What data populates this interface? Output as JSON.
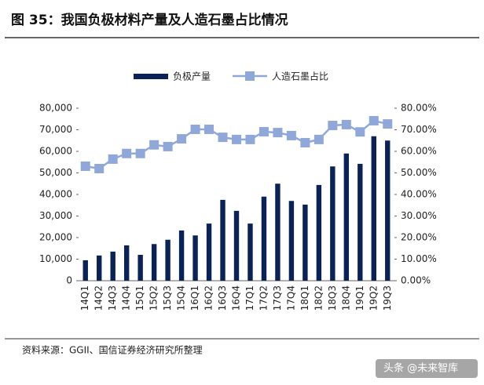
{
  "chart_data": {
    "type": "bar",
    "title": "图 35：我国负极材料产量及人造石墨占比情况",
    "source": "资料来源：GGII、国信证券经济研究所整理",
    "watermark": "头条 @未来智库",
    "categories": [
      "14Q1",
      "14Q2",
      "14Q3",
      "14Q4",
      "15Q1",
      "15Q2",
      "15Q3",
      "15Q4",
      "16Q1",
      "16Q2",
      "16Q3",
      "16Q4",
      "17Q1",
      "17Q2",
      "17Q3",
      "17Q4",
      "18Q1",
      "18Q2",
      "18Q3",
      "18Q4",
      "19Q1",
      "19Q2",
      "19Q3"
    ],
    "series": [
      {
        "name": "负极产量",
        "type": "bar",
        "color": "#0b2257",
        "values": [
          9500,
          11700,
          13500,
          16400,
          12000,
          17000,
          19000,
          23300,
          21000,
          26500,
          37500,
          32400,
          26500,
          39000,
          45000,
          37000,
          35300,
          44400,
          53000,
          59000,
          54200,
          67000,
          65000
        ]
      },
      {
        "name": "人造石墨占比",
        "type": "line",
        "axis": "y2",
        "color": "#8fa8d9",
        "values": [
          53.1,
          52,
          56.4,
          59,
          59,
          63,
          62.2,
          65.8,
          70.2,
          70.2,
          66.5,
          65.5,
          65.5,
          69.1,
          68.7,
          67.3,
          64,
          65.5,
          72,
          72.4,
          69,
          74.2,
          72.7
        ]
      }
    ],
    "ylim": [
      0,
      80000
    ],
    "yticks": [
      0,
      {
        "value": 10000,
        "label": "10,000"
      },
      {
        "value": 20000,
        "label": "20,000"
      },
      {
        "value": 30000,
        "label": "30,000"
      },
      {
        "value": 40000,
        "label": "40,000"
      },
      {
        "value": 50000,
        "label": "50,000"
      },
      {
        "value": 60000,
        "label": "60,000"
      },
      {
        "value": 70000,
        "label": "70,000"
      },
      {
        "value": 80000,
        "label": "80,000"
      }
    ],
    "y2lim": [
      0,
      80
    ],
    "y2ticks": [
      {
        "value": 0,
        "label": "0.00%"
      },
      {
        "value": 10,
        "label": "10.00%"
      },
      {
        "value": 20,
        "label": "20.00%"
      },
      {
        "value": 30,
        "label": "30.00%"
      },
      {
        "value": 40,
        "label": "40.00%"
      },
      {
        "value": 50,
        "label": "50.00%"
      },
      {
        "value": 60,
        "label": "60.00%"
      },
      {
        "value": 70,
        "label": "70.00%"
      },
      {
        "value": 80,
        "label": "80.00%"
      }
    ],
    "grid": false,
    "legend": "top"
  }
}
